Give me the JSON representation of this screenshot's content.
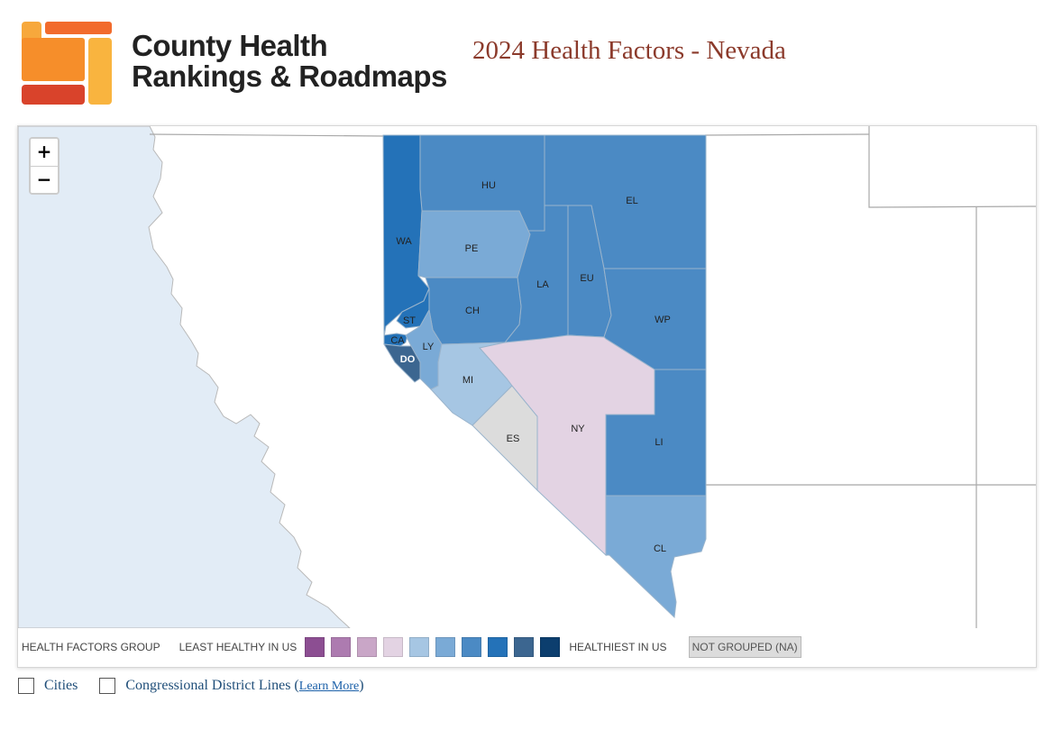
{
  "brand": {
    "line1": "County Health",
    "line2": "Rankings & Roadmaps",
    "logo_colors": [
      "#f7a83c",
      "#f26b2c",
      "#d9432b",
      "#f9c045"
    ]
  },
  "page_title": "2024 Health Factors - Nevada",
  "zoom": {
    "in_label": "+",
    "out_label": "−"
  },
  "map": {
    "ocean_color": "#e2ecf6",
    "land_color": "#ffffff",
    "counties": [
      {
        "code": "HU",
        "group": 6
      },
      {
        "code": "EL",
        "group": 6
      },
      {
        "code": "WA",
        "group": 7
      },
      {
        "code": "PE",
        "group": 5
      },
      {
        "code": "LA",
        "group": 6
      },
      {
        "code": "EU",
        "group": 6
      },
      {
        "code": "CH",
        "group": 6
      },
      {
        "code": "WP",
        "group": 6
      },
      {
        "code": "ST",
        "group": 7
      },
      {
        "code": "CA",
        "group": 7
      },
      {
        "code": "LY",
        "group": 5
      },
      {
        "code": "DO",
        "group": 8
      },
      {
        "code": "MI",
        "group": 4
      },
      {
        "code": "ES",
        "group": "NA"
      },
      {
        "code": "NY",
        "group": 3
      },
      {
        "code": "LI",
        "group": 6
      },
      {
        "code": "CL",
        "group": 5
      }
    ]
  },
  "legend": {
    "title": "HEALTH FACTORS GROUP",
    "least_label": "LEAST HEALTHY IN US",
    "most_label": "HEALTHIEST IN US",
    "na_label": "NOT GROUPED (NA)",
    "swatch_colors": [
      "#8c4e92",
      "#ad7bb0",
      "#c9a6c7",
      "#e3d3e3",
      "#a6c6e3",
      "#7aaad6",
      "#4b8ac4",
      "#2472b8",
      "#3c6690",
      "#0c3e6e"
    ],
    "na_color": "#dcdcdc"
  },
  "options": {
    "cities_label": "Cities",
    "districts_label": "Congressional District Lines (",
    "learn_more": "Learn More",
    "close_paren": ")"
  }
}
